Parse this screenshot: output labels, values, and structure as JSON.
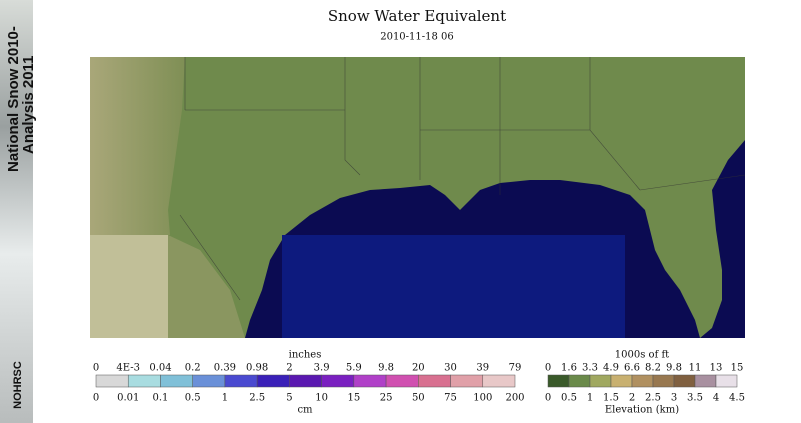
{
  "title": "Snow Water Equivalent",
  "date": "2010-11-18 06",
  "banner": {
    "line1": "National Snow 2010-",
    "line2": "Analysis 2011",
    "logo": "NOHRSC"
  },
  "swe_legend": {
    "top_unit": "inches",
    "top_labels": [
      "0",
      "4E-3",
      "0.04",
      "0.2",
      "0.39",
      "0.98",
      "2",
      "3.9",
      "5.9",
      "9.8",
      "20",
      "30",
      "39",
      "79"
    ],
    "bottom_labels": [
      "0",
      "0.01",
      "0.1",
      "0.5",
      "1",
      "2.5",
      "5",
      "10",
      "15",
      "25",
      "50",
      "75",
      "100",
      "200"
    ],
    "bottom_unit": "cm"
  },
  "elev_legend": {
    "top_unit": "1000s of ft",
    "top_labels": [
      "0",
      "1.6",
      "3.3",
      "4.9",
      "6.6",
      "8.2",
      "9.8",
      "11",
      "13",
      "15"
    ],
    "bottom_labels": [
      "0",
      "0.5",
      "1",
      "1.5",
      "2",
      "2.5",
      "3",
      "3.5",
      "4",
      "4.5"
    ],
    "bottom_unit": "Elevation (km)"
  }
}
